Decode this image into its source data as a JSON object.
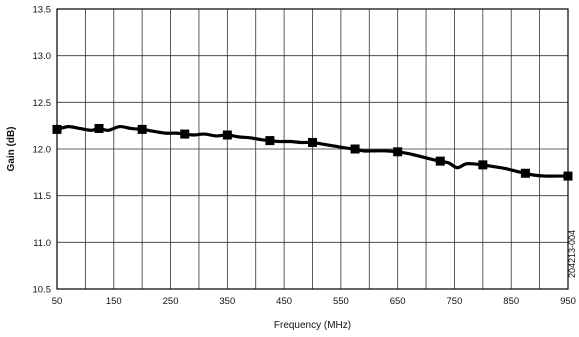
{
  "chart_data": {
    "type": "line",
    "title": "",
    "xlabel": "Frequency (MHz)",
    "ylabel": "Gain (dB)",
    "xlim": [
      50,
      950
    ],
    "ylim": [
      10.5,
      13.5
    ],
    "xticks": [
      50,
      150,
      250,
      350,
      450,
      550,
      650,
      750,
      850,
      950
    ],
    "yticks": [
      10.5,
      11.0,
      11.5,
      12.0,
      12.5,
      13.0,
      13.5
    ],
    "x_grid_lines": [
      50,
      100,
      150,
      200,
      250,
      300,
      350,
      400,
      450,
      500,
      550,
      600,
      650,
      700,
      750,
      800,
      850,
      900,
      950
    ],
    "grid": true,
    "legend": "none",
    "line_color": "#000000",
    "series": [
      {
        "name": "",
        "marker": "square",
        "x": [
          50,
          70,
          90,
          110,
          124,
          140,
          160,
          180,
          200,
          220,
          240,
          260,
          275,
          290,
          310,
          330,
          350,
          370,
          390,
          410,
          425,
          440,
          460,
          480,
          500,
          520,
          540,
          560,
          575,
          590,
          610,
          630,
          650,
          670,
          690,
          710,
          725,
          740,
          755,
          770,
          785,
          800,
          820,
          840,
          860,
          875,
          890,
          910,
          930,
          950
        ],
        "y": [
          12.21,
          12.24,
          12.22,
          12.2,
          12.22,
          12.2,
          12.24,
          12.22,
          12.21,
          12.19,
          12.17,
          12.17,
          12.16,
          12.15,
          12.16,
          12.14,
          12.15,
          12.13,
          12.12,
          12.1,
          12.09,
          12.08,
          12.08,
          12.07,
          12.07,
          12.05,
          12.03,
          12.01,
          12.0,
          11.98,
          11.98,
          11.98,
          11.97,
          11.95,
          11.92,
          11.89,
          11.87,
          11.85,
          11.8,
          11.84,
          11.84,
          11.83,
          11.81,
          11.79,
          11.76,
          11.74,
          11.72,
          11.71,
          11.71,
          11.71
        ]
      }
    ],
    "marker_points": {
      "x": [
        50,
        124,
        200,
        275,
        350,
        425,
        500,
        575,
        650,
        725,
        800,
        875,
        950
      ],
      "y": [
        12.21,
        12.22,
        12.21,
        12.16,
        12.15,
        12.09,
        12.07,
        12.0,
        11.97,
        11.87,
        11.83,
        11.74,
        11.71
      ]
    },
    "side_note": "204213-004"
  }
}
